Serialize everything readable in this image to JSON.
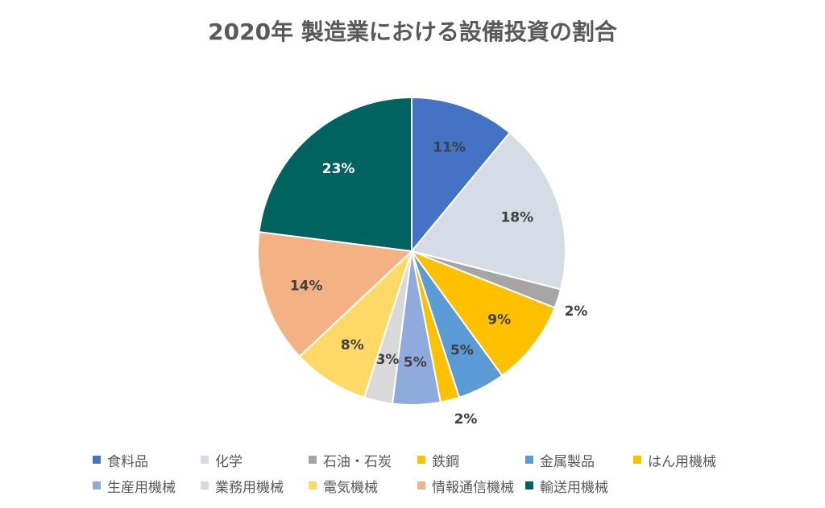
{
  "chart_data": {
    "type": "pie",
    "title": "2020年 製造業における設備投資の割合",
    "categories": [
      "食料品",
      "化学",
      "石油・石炭",
      "鉄鋼",
      "金属製品",
      "はん用機械",
      "生産用機械",
      "業務用機械",
      "電気機械",
      "情報通信機械",
      "輸送用機械"
    ],
    "values": [
      11,
      18,
      2,
      9,
      5,
      2,
      5,
      3,
      8,
      14,
      23
    ],
    "labels": [
      "11%",
      "18%",
      "2%",
      "9%",
      "5%",
      "2%",
      "5%",
      "3%",
      "8%",
      "14%",
      "23%"
    ],
    "colors": [
      "#4472C4",
      "#D6DCE5",
      "#A5A5A5",
      "#FFC000",
      "#5B9BD5",
      "#FFC000",
      "#8FAADC",
      "#D9D9D9",
      "#FFD966",
      "#F4B183",
      "#00635F"
    ],
    "label_colors": [
      "#404040",
      "#404040",
      "#404040",
      "#404040",
      "#404040",
      "#404040",
      "#404040",
      "#404040",
      "#404040",
      "#404040",
      "#FFFFFF"
    ],
    "legend_position": "bottom"
  }
}
